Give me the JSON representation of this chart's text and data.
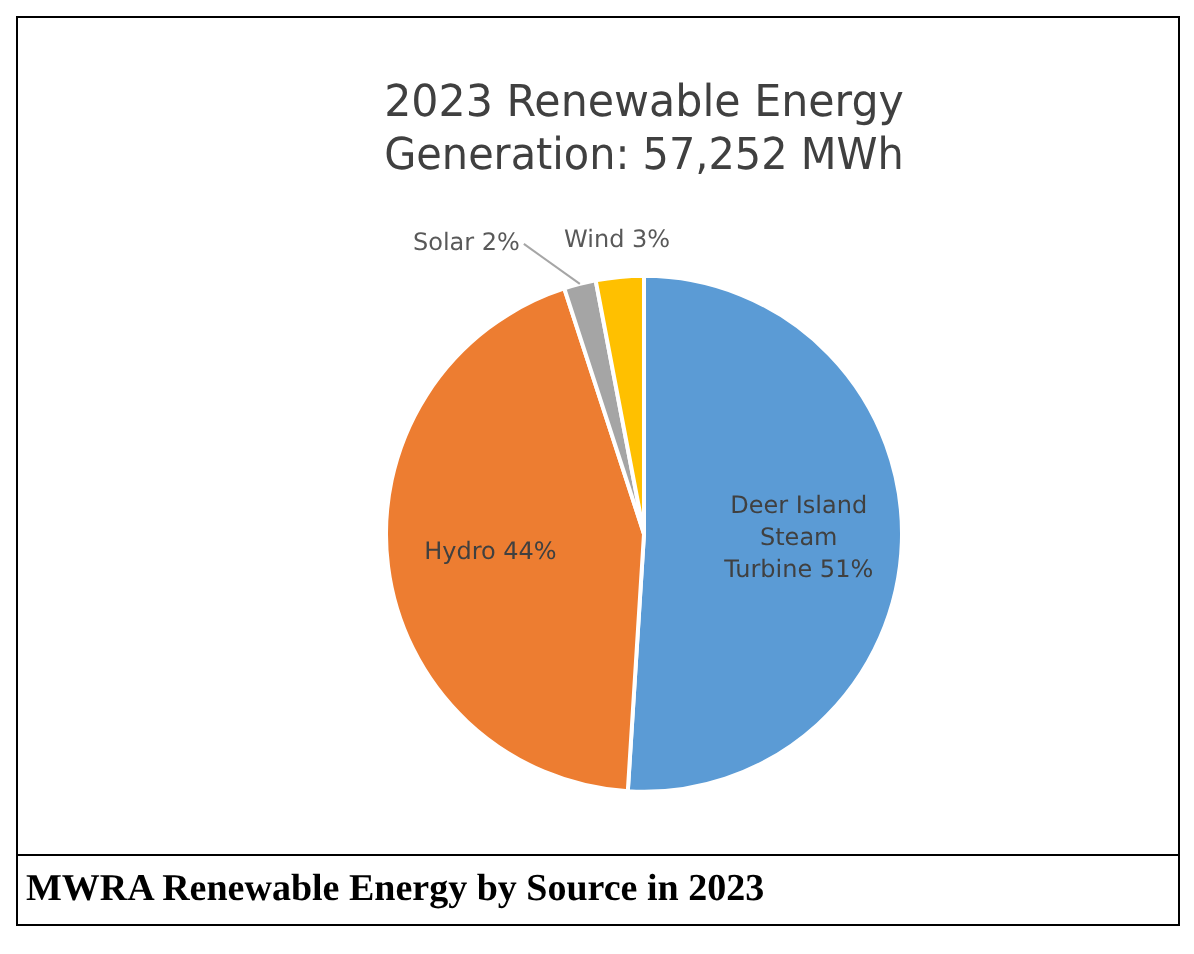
{
  "chart_data": {
    "type": "pie",
    "title": "2023 Renewable Energy Generation: 57,252 MWh",
    "categories": [
      "Deer Island Steam Turbine",
      "Hydro",
      "Solar",
      "Wind"
    ],
    "values": [
      51,
      44,
      2,
      3
    ],
    "colors": [
      "#5b9bd5",
      "#ed7d31",
      "#a5a5a5",
      "#ffc000"
    ],
    "value_labels": [
      "51%",
      "44%",
      "2%",
      "3%"
    ],
    "legend": false,
    "annotations": [
      "MWRA Renewable Energy by Source in 2023"
    ]
  }
}
